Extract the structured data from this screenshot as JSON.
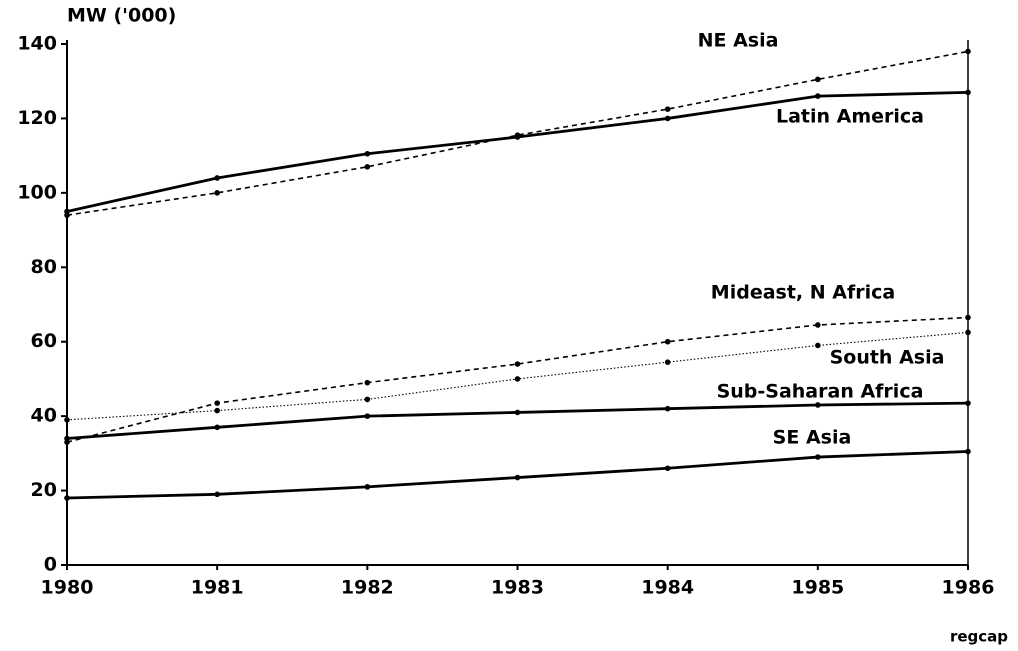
{
  "chart_data": {
    "type": "line",
    "y_label": "MW ('000)",
    "footer": "regcap",
    "x": [
      1980,
      1981,
      1982,
      1983,
      1984,
      1985,
      1986
    ],
    "xlim": [
      1980,
      1986
    ],
    "xticks": [
      1980,
      1981,
      1982,
      1983,
      1984,
      1985,
      1986
    ],
    "ylim": [
      0,
      140
    ],
    "yticks": [
      0,
      20,
      40,
      60,
      80,
      100,
      120,
      140
    ],
    "grid": false,
    "series": [
      {
        "name": "NE Asia",
        "color": "#000000",
        "dash": "dashed",
        "values": [
          94,
          100,
          107,
          115.5,
          122.5,
          130.5,
          138
        ]
      },
      {
        "name": "Latin America",
        "color": "#000000",
        "dash": "solid",
        "values": [
          95,
          104,
          110.5,
          115,
          120,
          126,
          127
        ]
      },
      {
        "name": "Mideast, N Africa",
        "color": "#000000",
        "dash": "dashed",
        "values": [
          33,
          43.5,
          49,
          54,
          60,
          64.5,
          66.5
        ]
      },
      {
        "name": "South Asia",
        "color": "#000000",
        "dash": "dotted",
        "values": [
          39,
          41.5,
          44.5,
          50,
          54.5,
          59,
          62.5
        ]
      },
      {
        "name": "Sub-Saharan Africa",
        "color": "#000000",
        "dash": "solid",
        "values": [
          34,
          37,
          40,
          41,
          42,
          43,
          43.5
        ]
      },
      {
        "name": "SE Asia",
        "color": "#000000",
        "dash": "solid",
        "values": [
          18,
          19,
          21,
          23.5,
          26,
          29,
          30.5
        ]
      }
    ]
  }
}
